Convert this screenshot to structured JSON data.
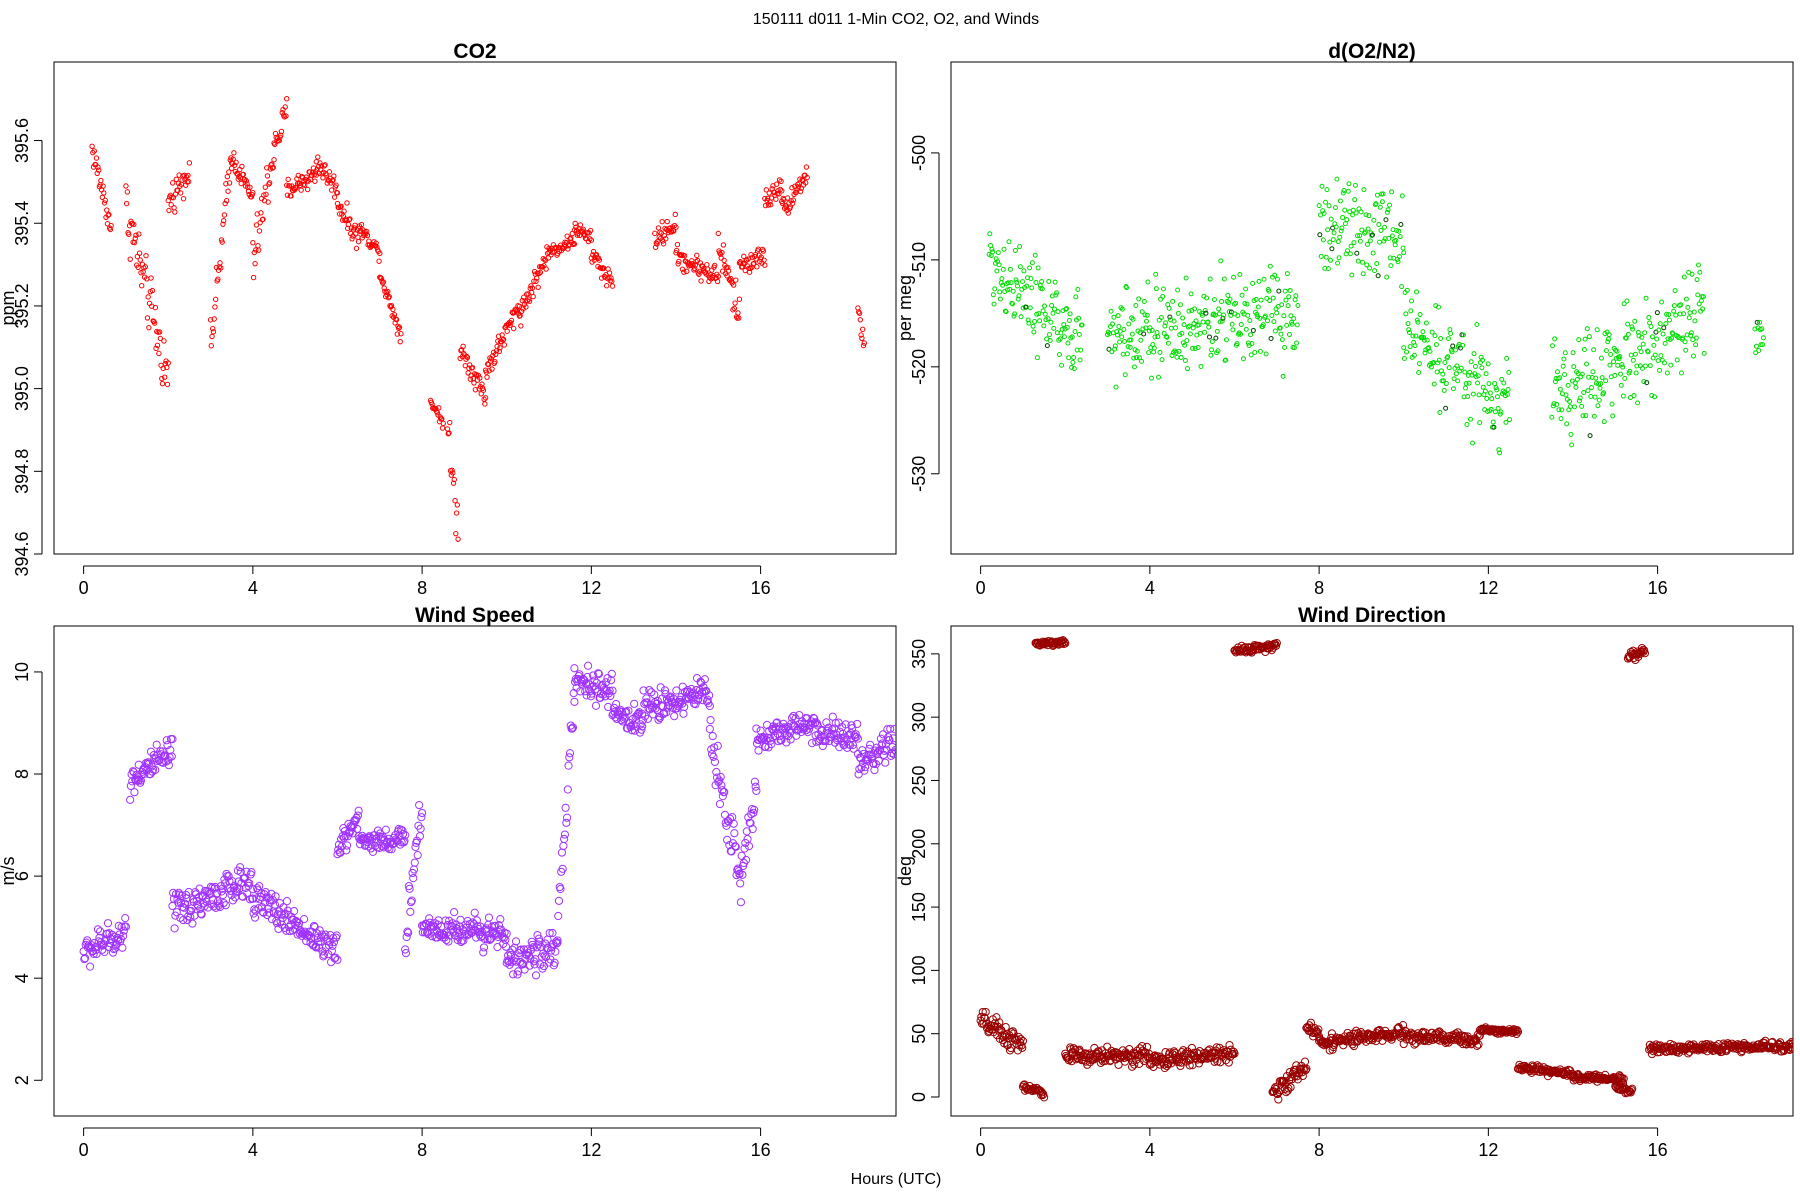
{
  "figure": {
    "suptitle": "150111   d011   1-Min CO2, O2, and Winds",
    "xlabel": "Hours (UTC)"
  },
  "chart_data": [
    {
      "type": "scatter",
      "title": "CO2",
      "xlabel": "",
      "ylabel": "ppm",
      "xlim": [
        -0.7,
        19.2
      ],
      "ylim": [
        394.6,
        395.79
      ],
      "xticks": [
        0,
        4,
        8,
        12,
        16
      ],
      "xtick_labels": [
        "0",
        "4",
        "8",
        "12",
        "16"
      ],
      "yticks": [
        394.6,
        394.8,
        395.0,
        395.2,
        395.4,
        395.6
      ],
      "ytick_labels": [
        "394.6",
        "394.8",
        "395.0",
        "395.2",
        "395.4",
        "395.6"
      ],
      "grid": false,
      "series": [
        {
          "color": "#ff0000",
          "marker": "open-circle",
          "segments": [
            {
              "x0": 0.2,
              "x1": 0.65,
              "y0": 395.58,
              "y1": 395.39,
              "noise": 0.04
            },
            {
              "x0": 1.0,
              "x1": 2.0,
              "y0": 395.44,
              "y1": 395.02,
              "noise": 0.08
            },
            {
              "x0": 2.0,
              "x1": 2.5,
              "y0": 395.45,
              "y1": 395.53,
              "noise": 0.04
            },
            {
              "x0": 3.0,
              "x1": 3.5,
              "y0": 395.1,
              "y1": 395.57,
              "noise": 0.06
            },
            {
              "x0": 3.5,
              "x1": 4.0,
              "y0": 395.56,
              "y1": 395.46,
              "noise": 0.03
            },
            {
              "x0": 4.0,
              "x1": 4.5,
              "y0": 395.3,
              "y1": 395.58,
              "noise": 0.07
            },
            {
              "x0": 4.5,
              "x1": 4.8,
              "y0": 395.58,
              "y1": 395.67,
              "noise": 0.04
            },
            {
              "x0": 4.8,
              "x1": 5.5,
              "y0": 395.48,
              "y1": 395.52,
              "noise": 0.03
            },
            {
              "x0": 5.5,
              "x1": 6.0,
              "y0": 395.55,
              "y1": 395.48,
              "noise": 0.03
            },
            {
              "x0": 6.0,
              "x1": 6.5,
              "y0": 395.45,
              "y1": 395.36,
              "noise": 0.03
            },
            {
              "x0": 6.5,
              "x1": 7.0,
              "y0": 395.39,
              "y1": 395.33,
              "noise": 0.02
            },
            {
              "x0": 7.0,
              "x1": 7.5,
              "y0": 395.28,
              "y1": 395.13,
              "noise": 0.02
            },
            {
              "x0": 8.2,
              "x1": 8.5,
              "y0": 394.97,
              "y1": 394.92,
              "noise": 0.02
            },
            {
              "x0": 8.6,
              "x1": 8.85,
              "y0": 394.9,
              "y1": 394.66,
              "noise": 0.07
            },
            {
              "x0": 8.9,
              "x1": 9.5,
              "y0": 395.1,
              "y1": 394.98,
              "noise": 0.03
            },
            {
              "x0": 9.5,
              "x1": 10.3,
              "y0": 395.04,
              "y1": 395.2,
              "noise": 0.03
            },
            {
              "x0": 10.3,
              "x1": 11.0,
              "y0": 395.18,
              "y1": 395.33,
              "noise": 0.03
            },
            {
              "x0": 11.0,
              "x1": 11.6,
              "y0": 395.33,
              "y1": 395.36,
              "noise": 0.02
            },
            {
              "x0": 11.6,
              "x1": 12.0,
              "y0": 395.39,
              "y1": 395.36,
              "noise": 0.02
            },
            {
              "x0": 12.0,
              "x1": 12.5,
              "y0": 395.33,
              "y1": 395.25,
              "noise": 0.03
            },
            {
              "x0": 13.5,
              "x1": 14.0,
              "y0": 395.36,
              "y1": 395.4,
              "noise": 0.03
            },
            {
              "x0": 14.0,
              "x1": 15.0,
              "y0": 395.32,
              "y1": 395.27,
              "noise": 0.03
            },
            {
              "x0": 15.0,
              "x1": 15.5,
              "y0": 395.35,
              "y1": 395.18,
              "noise": 0.05
            },
            {
              "x0": 15.5,
              "x1": 16.1,
              "y0": 395.3,
              "y1": 395.32,
              "noise": 0.03
            },
            {
              "x0": 16.1,
              "x1": 16.5,
              "y0": 395.45,
              "y1": 395.5,
              "noise": 0.03
            },
            {
              "x0": 16.5,
              "x1": 17.1,
              "y0": 395.43,
              "y1": 395.52,
              "noise": 0.03
            },
            {
              "x0": 18.3,
              "x1": 18.45,
              "y0": 395.2,
              "y1": 395.1,
              "noise": 0.03
            }
          ]
        }
      ]
    },
    {
      "type": "scatter",
      "title": "d(O2/N2)",
      "xlabel": "",
      "ylabel": "per meg",
      "xlim": [
        -0.7,
        19.2
      ],
      "ylim": [
        -537.5,
        -491.5
      ],
      "xticks": [
        0,
        4,
        8,
        12,
        16
      ],
      "xtick_labels": [
        "0",
        "4",
        "8",
        "12",
        "16"
      ],
      "yticks": [
        -530,
        -520,
        -510,
        -500
      ],
      "ytick_labels": [
        "-530",
        "-520",
        "-510",
        "-500"
      ],
      "grid": false,
      "series": [
        {
          "color": "#00dd00",
          "accent_color": "#004400",
          "marker": "open-circle",
          "segments": [
            {
              "x0": 0.2,
              "x1": 2.4,
              "y0": -510,
              "y1": -518,
              "noise": 4.5
            },
            {
              "x0": 3.0,
              "x1": 7.5,
              "y0": -517,
              "y1": -515,
              "noise": 5
            },
            {
              "x0": 8.0,
              "x1": 10.0,
              "y0": -507,
              "y1": -508,
              "noise": 4.5
            },
            {
              "x0": 10.0,
              "x1": 12.5,
              "y0": -516,
              "y1": -524,
              "noise": 5
            },
            {
              "x0": 13.5,
              "x1": 17.1,
              "y0": -523,
              "y1": -515,
              "noise": 5
            },
            {
              "x0": 18.3,
              "x1": 18.5,
              "y0": -517,
              "y1": -517,
              "noise": 2
            }
          ]
        }
      ]
    },
    {
      "type": "scatter",
      "title": "Wind Speed",
      "xlabel": "",
      "ylabel": "m/s",
      "xlim": [
        -0.7,
        19.2
      ],
      "ylim": [
        1.3,
        10.9
      ],
      "xticks": [
        0,
        4,
        8,
        12,
        16
      ],
      "xtick_labels": [
        "0",
        "4",
        "8",
        "12",
        "16"
      ],
      "yticks": [
        2,
        4,
        6,
        8,
        10
      ],
      "ytick_labels": [
        "2",
        "4",
        "6",
        "8",
        "10"
      ],
      "grid": false,
      "series": [
        {
          "color": "#a033ff",
          "marker": "open-circle",
          "segments": [
            {
              "x0": 0.0,
              "x1": 1.0,
              "y0": 4.5,
              "y1": 4.9,
              "noise": 0.35
            },
            {
              "x0": 1.1,
              "x1": 2.1,
              "y0": 7.9,
              "y1": 8.4,
              "noise": 0.35
            },
            {
              "x0": 2.1,
              "x1": 4.0,
              "y0": 5.3,
              "y1": 5.9,
              "noise": 0.4
            },
            {
              "x0": 4.0,
              "x1": 6.0,
              "y0": 5.6,
              "y1": 4.5,
              "noise": 0.35
            },
            {
              "x0": 6.0,
              "x1": 6.5,
              "y0": 6.5,
              "y1": 7.2,
              "noise": 0.3
            },
            {
              "x0": 6.5,
              "x1": 7.6,
              "y0": 6.7,
              "y1": 6.7,
              "noise": 0.25
            },
            {
              "x0": 7.6,
              "x1": 8.0,
              "y0": 4.8,
              "y1": 7.4,
              "noise": 0.5
            },
            {
              "x0": 8.0,
              "x1": 10.0,
              "y0": 5.0,
              "y1": 4.9,
              "noise": 0.35
            },
            {
              "x0": 10.0,
              "x1": 11.2,
              "y0": 4.3,
              "y1": 4.6,
              "noise": 0.35
            },
            {
              "x0": 11.2,
              "x1": 11.6,
              "y0": 5.0,
              "y1": 9.5,
              "noise": 0.4
            },
            {
              "x0": 11.6,
              "x1": 12.5,
              "y0": 9.8,
              "y1": 9.6,
              "noise": 0.35
            },
            {
              "x0": 12.5,
              "x1": 13.2,
              "y0": 9.2,
              "y1": 9.0,
              "noise": 0.3
            },
            {
              "x0": 13.2,
              "x1": 14.8,
              "y0": 9.3,
              "y1": 9.6,
              "noise": 0.35
            },
            {
              "x0": 14.8,
              "x1": 15.5,
              "y0": 8.8,
              "y1": 6.0,
              "noise": 0.6
            },
            {
              "x0": 15.5,
              "x1": 15.9,
              "y0": 5.8,
              "y1": 7.8,
              "noise": 0.5
            },
            {
              "x0": 15.9,
              "x1": 17.3,
              "y0": 8.7,
              "y1": 9.0,
              "noise": 0.3
            },
            {
              "x0": 17.3,
              "x1": 18.3,
              "y0": 8.8,
              "y1": 8.7,
              "noise": 0.35
            },
            {
              "x0": 18.3,
              "x1": 19.2,
              "y0": 8.1,
              "y1": 8.6,
              "noise": 0.4
            }
          ]
        }
      ]
    },
    {
      "type": "scatter",
      "title": "Wind Direction",
      "xlabel": "",
      "ylabel": "deg",
      "xlim": [
        -0.7,
        19.2
      ],
      "ylim": [
        -15,
        372
      ],
      "xticks": [
        0,
        4,
        8,
        12,
        16
      ],
      "xtick_labels": [
        "0",
        "4",
        "8",
        "12",
        "16"
      ],
      "yticks": [
        0,
        50,
        100,
        150,
        200,
        250,
        300,
        350
      ],
      "ytick_labels": [
        "0",
        "50",
        "100",
        "150",
        "200",
        "250",
        "300",
        "350"
      ],
      "grid": false,
      "series": [
        {
          "color": "#990000",
          "marker": "open-circle",
          "segments": [
            {
              "x0": 0.0,
              "x1": 1.0,
              "y0": 60,
              "y1": 40,
              "noise": 10
            },
            {
              "x0": 1.0,
              "x1": 1.5,
              "y0": 8,
              "y1": 3,
              "noise": 3
            },
            {
              "x0": 1.3,
              "x1": 2.0,
              "y0": 358,
              "y1": 359,
              "noise": 2
            },
            {
              "x0": 2.0,
              "x1": 4.0,
              "y0": 32,
              "y1": 33,
              "noise": 8
            },
            {
              "x0": 4.0,
              "x1": 6.0,
              "y0": 28,
              "y1": 35,
              "noise": 7
            },
            {
              "x0": 6.0,
              "x1": 7.0,
              "y0": 353,
              "y1": 356,
              "noise": 3
            },
            {
              "x0": 6.9,
              "x1": 7.7,
              "y0": 2,
              "y1": 25,
              "noise": 8
            },
            {
              "x0": 7.7,
              "x1": 8.0,
              "y0": 55,
              "y1": 50,
              "noise": 5
            },
            {
              "x0": 8.0,
              "x1": 10.0,
              "y0": 43,
              "y1": 50,
              "noise": 6
            },
            {
              "x0": 10.0,
              "x1": 11.8,
              "y0": 48,
              "y1": 45,
              "noise": 6
            },
            {
              "x0": 11.8,
              "x1": 12.7,
              "y0": 53,
              "y1": 52,
              "noise": 2
            },
            {
              "x0": 12.7,
              "x1": 14.0,
              "y0": 23,
              "y1": 18,
              "noise": 3
            },
            {
              "x0": 14.0,
              "x1": 15.2,
              "y0": 16,
              "y1": 14,
              "noise": 3
            },
            {
              "x0": 15.0,
              "x1": 15.4,
              "y0": 8,
              "y1": 5,
              "noise": 3
            },
            {
              "x0": 15.3,
              "x1": 15.7,
              "y0": 347,
              "y1": 352,
              "noise": 4
            },
            {
              "x0": 15.8,
              "x1": 19.2,
              "y0": 38,
              "y1": 40,
              "noise": 4
            }
          ]
        }
      ]
    }
  ]
}
